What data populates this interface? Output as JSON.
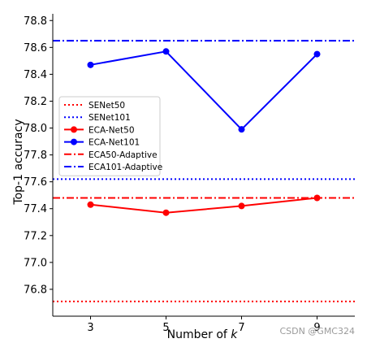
{
  "chart_data": {
    "type": "line",
    "xlabel": "Number of k",
    "xlabel_prefix": "Number of ",
    "xlabel_var": "k",
    "ylabel": "Top-1 accuracy",
    "x": [
      3,
      5,
      7,
      9
    ],
    "x_tick_labels": [
      "3",
      "5",
      "7",
      "9"
    ],
    "xlim": [
      2,
      10
    ],
    "ylim": [
      76.6,
      78.85
    ],
    "y_ticks": [
      76.8,
      77.0,
      77.2,
      77.4,
      77.6,
      77.8,
      78.0,
      78.2,
      78.4,
      78.6,
      78.8
    ],
    "y_tick_labels": [
      "76.8",
      "77.0",
      "77.2",
      "77.4",
      "77.6",
      "77.8",
      "78.0",
      "78.2",
      "78.4",
      "78.6",
      "78.8"
    ],
    "grid": false,
    "legend_position": "center-left",
    "series": [
      {
        "name": "SENet50",
        "kind": "hline",
        "value": 76.71,
        "color": "#ff0000",
        "dash": "dotted",
        "marker": false
      },
      {
        "name": "SENet101",
        "kind": "hline",
        "value": 77.62,
        "color": "#0000ff",
        "dash": "dotted",
        "marker": false
      },
      {
        "name": "ECA-Net50",
        "kind": "line",
        "values": [
          77.43,
          77.37,
          77.42,
          77.48
        ],
        "color": "#ff0000",
        "dash": "solid",
        "marker": true
      },
      {
        "name": "ECA-Net101",
        "kind": "line",
        "values": [
          78.47,
          78.57,
          77.99,
          78.55
        ],
        "color": "#0000ff",
        "dash": "solid",
        "marker": true
      },
      {
        "name": "ECA50-Adaptive",
        "kind": "hline",
        "value": 77.48,
        "color": "#ff0000",
        "dash": "dashdot",
        "marker": false
      },
      {
        "name": "ECA101-Adaptive",
        "kind": "hline",
        "value": 78.65,
        "color": "#0000ff",
        "dash": "dashdot",
        "marker": false
      }
    ]
  },
  "watermark": "CSDN @GMC324"
}
